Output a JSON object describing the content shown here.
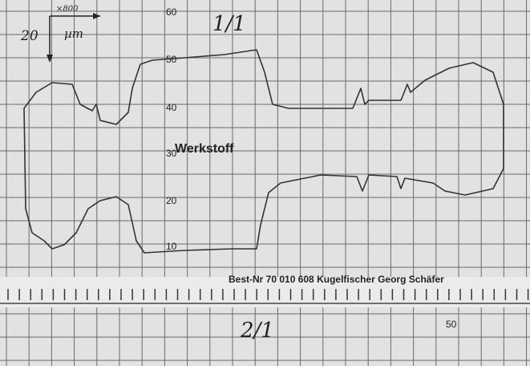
{
  "header": {
    "magnification": "×800",
    "scale_value": "20",
    "scale_unit": "µm",
    "title": "1/1"
  },
  "grid_labels": [
    "60",
    "50",
    "40",
    "30",
    "20",
    "10"
  ],
  "material": "Werkstoff",
  "order_line": "Best-Nr 70 010 608 Kugelfischer Georg Schäfer",
  "footer": {
    "title": "2/1",
    "grid_label": "50"
  }
}
